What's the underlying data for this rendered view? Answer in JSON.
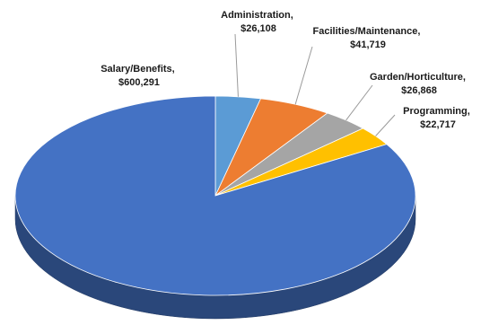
{
  "chart_data": {
    "type": "pie",
    "title": "",
    "slices": [
      {
        "label": "Administration",
        "value_text": "$26,108",
        "value": 26108,
        "color": "#5B9BD5"
      },
      {
        "label": "Facilities/Maintenance",
        "value_text": "$41,719",
        "value": 41719,
        "color": "#ED7D31"
      },
      {
        "label": "Garden/Horticulture",
        "value_text": "$26,868",
        "value": 26868,
        "color": "#A5A5A5"
      },
      {
        "label": "Programming",
        "value_text": "$22,717",
        "value": 22717,
        "color": "#FFC000"
      },
      {
        "label": "Salary/Benefits",
        "value_text": "$600,291",
        "value": 600291,
        "color": "#4472C4"
      }
    ],
    "style": "3d",
    "legend": "none",
    "data_labels": "outside-with-leader-lines"
  }
}
